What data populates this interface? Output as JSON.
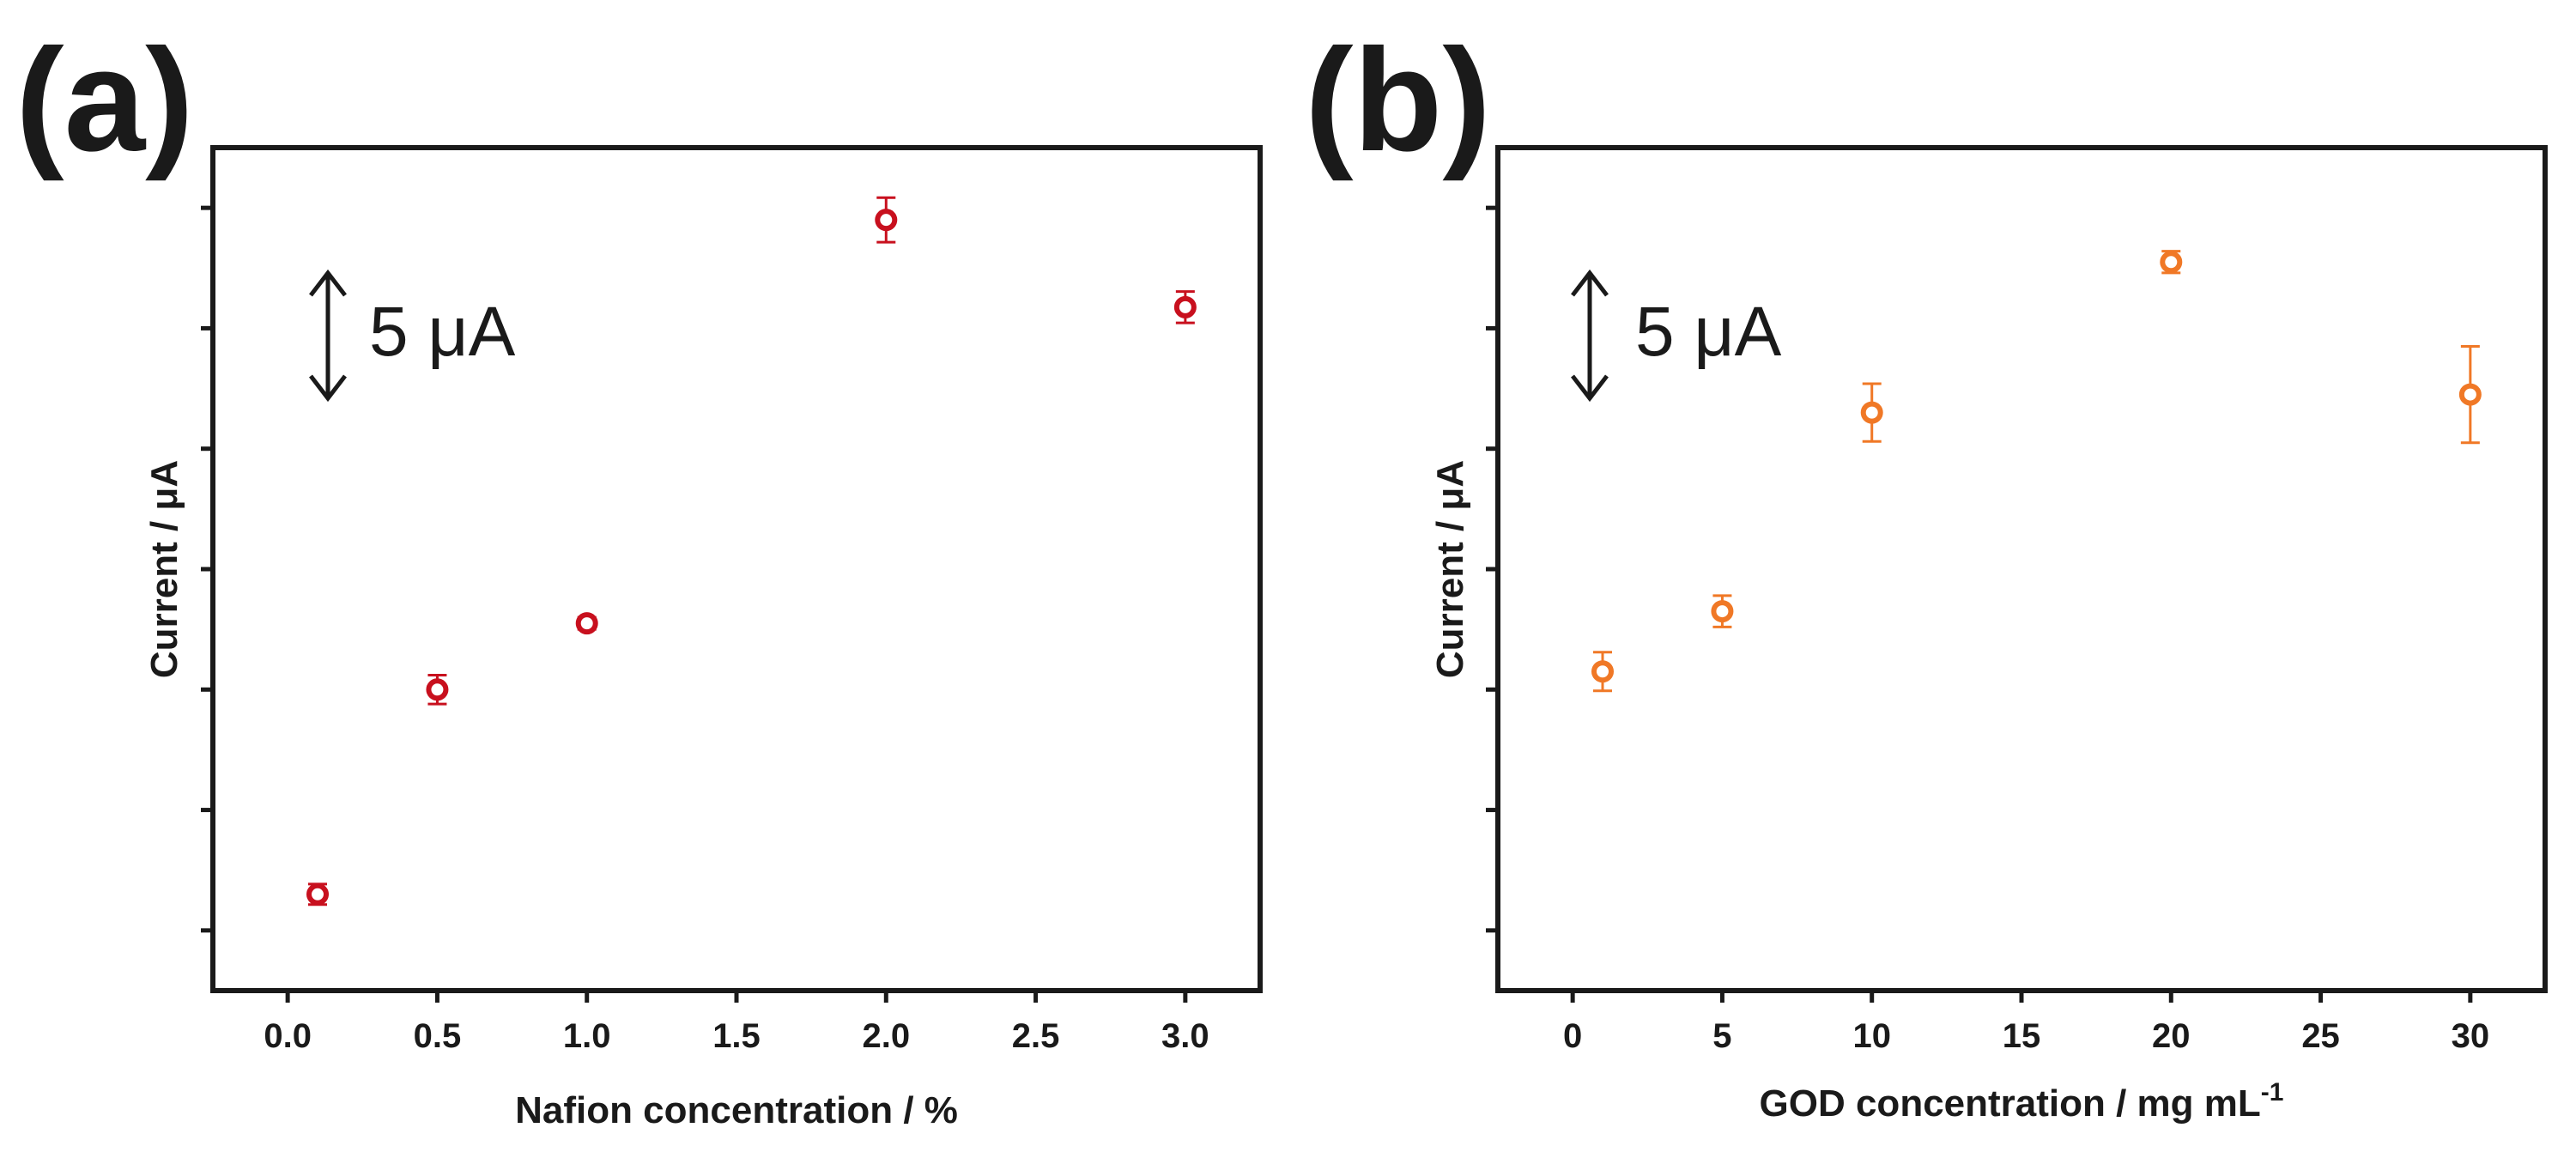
{
  "chart_data": [
    {
      "type": "scatter",
      "panel_label": "(a)",
      "title": "",
      "xlabel": "Nafion concentration / %",
      "ylabel": "Current / μA",
      "xlim": [
        -0.25,
        3.25
      ],
      "ylim": [
        0,
        14
      ],
      "x_ticks": [
        0.0,
        0.5,
        1.0,
        1.5,
        2.0,
        2.5,
        3.0
      ],
      "x_tick_labels": [
        "0.0",
        "0.5",
        "1.0",
        "1.5",
        "2.0",
        "2.5",
        "3.0"
      ],
      "y_tick_values": [
        1,
        3,
        5,
        7,
        9,
        11,
        13
      ],
      "y_tick_labels_shown": false,
      "scale_bar": {
        "label": "5 μA",
        "value": 2
      },
      "marker_color": "#c8101e",
      "series": [
        {
          "name": "Nafion",
          "x": [
            0.1,
            0.5,
            1.0,
            2.0,
            3.0
          ],
          "y": [
            1.6,
            5.0,
            6.1,
            12.8,
            11.35
          ],
          "yerr": [
            0.17,
            0.24,
            0.1,
            0.37,
            0.26
          ]
        }
      ]
    },
    {
      "type": "scatter",
      "panel_label": "(b)",
      "title": "",
      "xlabel": "GOD concentration / mg mL",
      "xlabel_superscript": "-1",
      "ylabel": "Current / μA",
      "xlim": [
        -2.5,
        32.5
      ],
      "ylim": [
        0,
        14
      ],
      "x_ticks": [
        0,
        5,
        10,
        15,
        20,
        25,
        30
      ],
      "x_tick_labels": [
        "0",
        "5",
        "10",
        "15",
        "20",
        "25",
        "30"
      ],
      "y_tick_values": [
        1,
        3,
        5,
        7,
        9,
        11,
        13
      ],
      "y_tick_labels_shown": false,
      "scale_bar": {
        "label": "5 μA",
        "value": 2
      },
      "marker_color": "#f07826",
      "series": [
        {
          "name": "GOD",
          "x": [
            1,
            5,
            10,
            20,
            30
          ],
          "y": [
            5.3,
            6.3,
            9.6,
            12.1,
            9.9
          ],
          "yerr": [
            0.32,
            0.26,
            0.48,
            0.18,
            0.8
          ]
        }
      ]
    }
  ]
}
